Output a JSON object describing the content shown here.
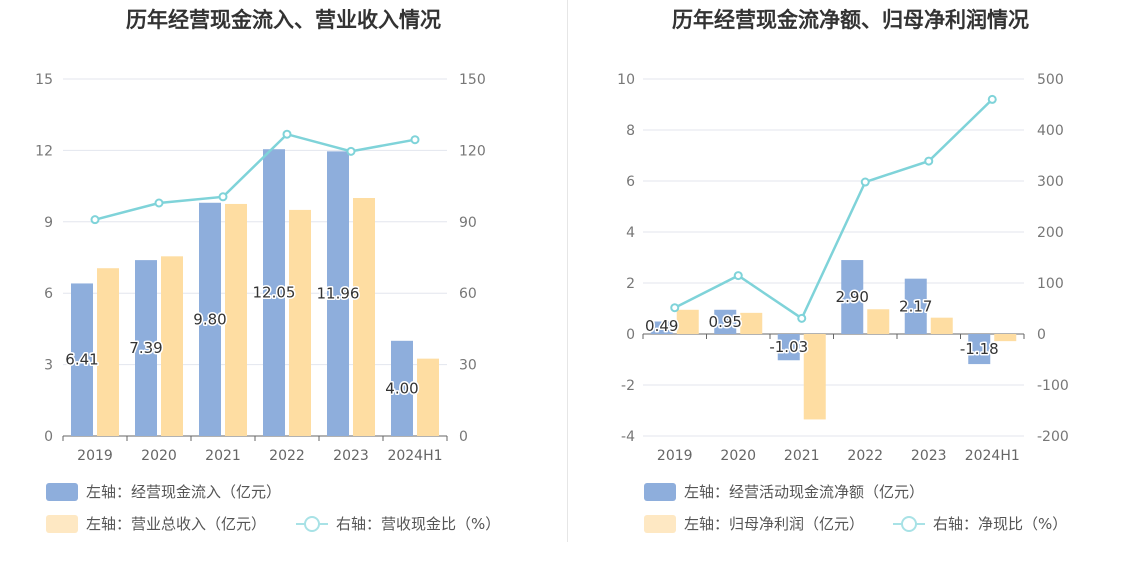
{
  "colors": {
    "bar1": "#8eaedc",
    "bar2": "#fedda2",
    "line": "#7fd3d9",
    "grid": "#e3e6ee",
    "axis": "#777777"
  },
  "chart_data": [
    {
      "type": "bar",
      "title": "历年经营现金流入、营业收入情况",
      "categories": [
        "2019",
        "2020",
        "2021",
        "2022",
        "2023",
        "2024H1"
      ],
      "left_axis": {
        "range": [
          0,
          15
        ],
        "ticks": [
          "0",
          "3",
          "6",
          "9",
          "12",
          "15"
        ]
      },
      "right_axis": {
        "range": [
          0,
          150
        ],
        "ticks": [
          "0",
          "30",
          "60",
          "90",
          "120",
          "150"
        ]
      },
      "series": [
        {
          "name": "左轴：经营现金流入（亿元）",
          "type": "bar",
          "axis": "left",
          "values": [
            6.41,
            7.39,
            9.8,
            12.05,
            11.96,
            4.0
          ],
          "labels": [
            "6.41",
            "7.39",
            "9.80",
            "12.05",
            "11.96",
            "4.00"
          ]
        },
        {
          "name": "左轴：营业总收入（亿元）",
          "type": "bar",
          "axis": "left",
          "values": [
            7.05,
            7.55,
            9.75,
            9.5,
            10.0,
            3.25
          ]
        },
        {
          "name": "右轴：营收现金比（%）",
          "type": "line",
          "axis": "right",
          "values": [
            90.9,
            97.9,
            100.5,
            126.8,
            119.6,
            124.5
          ]
        }
      ],
      "legend": [
        {
          "label": "左轴：经营现金流入（亿元）",
          "kind": "bar",
          "color": "#8eaedc"
        },
        {
          "label": "左轴：营业总收入（亿元）",
          "kind": "bar",
          "color": "#fee8c3"
        },
        {
          "label": "右轴：营收现金比（%）",
          "kind": "line",
          "color": "#a8e2e6"
        }
      ]
    },
    {
      "type": "bar",
      "title": "历年经营现金流净额、归母净利润情况",
      "categories": [
        "2019",
        "2020",
        "2021",
        "2022",
        "2023",
        "2024H1"
      ],
      "left_axis": {
        "range": [
          -4,
          10
        ],
        "ticks": [
          "-4",
          "-2",
          "0",
          "2",
          "4",
          "6",
          "8",
          "10"
        ]
      },
      "right_axis": {
        "range": [
          -200,
          500
        ],
        "ticks": [
          "-200",
          "-100",
          "0",
          "100",
          "200",
          "300",
          "400",
          "500"
        ]
      },
      "series": [
        {
          "name": "左轴：经营活动现金流净额（亿元）",
          "type": "bar",
          "axis": "left",
          "values": [
            0.49,
            0.95,
            -1.03,
            2.9,
            2.17,
            -1.18
          ],
          "labels": [
            "0.49",
            "0.95",
            "-1.03",
            "2.90",
            "2.17",
            "-1.18"
          ]
        },
        {
          "name": "左轴：归母净利润（亿元）",
          "type": "bar",
          "axis": "left",
          "values": [
            0.95,
            0.83,
            -3.35,
            0.97,
            0.64,
            -0.28
          ]
        },
        {
          "name": "右轴：净现比（%）",
          "type": "line",
          "axis": "right",
          "values": [
            51.5,
            114.5,
            30.7,
            298.0,
            339.0,
            460.0
          ]
        }
      ],
      "legend": [
        {
          "label": "左轴：经营活动现金流净额（亿元）",
          "kind": "bar",
          "color": "#8eaedc"
        },
        {
          "label": "左轴：归母净利润（亿元）",
          "kind": "bar",
          "color": "#fee8c3"
        },
        {
          "label": "右轴：净现比（%）",
          "kind": "line",
          "color": "#a8e2e6"
        }
      ]
    }
  ]
}
